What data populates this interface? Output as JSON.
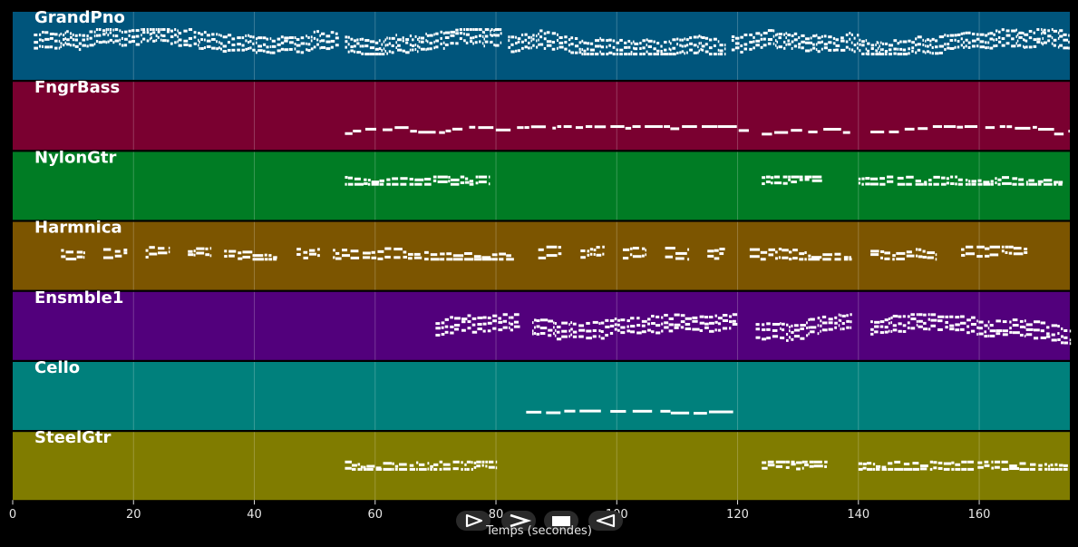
{
  "chart_data": {
    "type": "piano-roll",
    "xlabel": "Temps (secondes)",
    "xlim": [
      0,
      175
    ],
    "x_ticks": [
      0,
      20,
      40,
      60,
      80,
      100,
      120,
      140,
      160
    ],
    "grid": true,
    "tracks": [
      {
        "name": "GrandPno",
        "color": "#00557c",
        "pitch_range": [
          0,
          24
        ],
        "segments": [
          [
            3.5,
            54
          ],
          [
            55,
            81
          ],
          [
            82,
            118
          ],
          [
            119,
            175
          ]
        ],
        "density": 5,
        "pitch_band": [
          9,
          19
        ]
      },
      {
        "name": "FngrBass",
        "color": "#7a0030",
        "pitch_range": [
          0,
          24
        ],
        "segments": [
          [
            55,
            122
          ],
          [
            124,
            139
          ],
          [
            142,
            175
          ]
        ],
        "density": 1.2,
        "pitch_band": [
          3,
          8
        ]
      },
      {
        "name": "NylonGtr",
        "color": "#007c24",
        "pitch_range": [
          0,
          24
        ],
        "segments": [
          [
            55,
            79
          ],
          [
            124,
            134
          ],
          [
            140,
            174
          ]
        ],
        "density": 2.5,
        "pitch_band": [
          13,
          16
        ]
      },
      {
        "name": "Harmnica",
        "color": "#7c5500",
        "pitch_range": [
          0,
          24
        ],
        "segments": [
          [
            8,
            12
          ],
          [
            15,
            19
          ],
          [
            22,
            26
          ],
          [
            29,
            33
          ],
          [
            35,
            44
          ],
          [
            47,
            51
          ],
          [
            53,
            83
          ],
          [
            87,
            91
          ],
          [
            94,
            98
          ],
          [
            101,
            105
          ],
          [
            108,
            112
          ],
          [
            115,
            118
          ],
          [
            122,
            139
          ],
          [
            142,
            153
          ],
          [
            157,
            168
          ]
        ],
        "density": 2.2,
        "pitch_band": [
          11,
          16
        ]
      },
      {
        "name": "Ensmble1",
        "color": "#52007c",
        "pitch_range": [
          0,
          24
        ],
        "segments": [
          [
            70,
            84
          ],
          [
            86,
            120
          ],
          [
            123,
            139
          ],
          [
            142,
            175
          ]
        ],
        "density": 3.5,
        "pitch_band": [
          5,
          17
        ]
      },
      {
        "name": "Cello",
        "color": "#00807c",
        "pitch_range": [
          0,
          24
        ],
        "segments": [
          [
            85,
            120
          ]
        ],
        "density": 0.8,
        "pitch_band": [
          4,
          8
        ]
      },
      {
        "name": "SteelGtr",
        "color": "#807c00",
        "pitch_range": [
          0,
          24
        ],
        "segments": [
          [
            55,
            80
          ],
          [
            124,
            135
          ],
          [
            140,
            175
          ]
        ],
        "density": 2.5,
        "pitch_band": [
          11,
          14
        ]
      }
    ]
  },
  "controls": [
    {
      "name": "play-icon",
      "symbol": "play"
    },
    {
      "name": "forward-icon",
      "symbol": "forward"
    },
    {
      "name": "stop-icon",
      "symbol": "stop"
    },
    {
      "name": "rewind-icon",
      "symbol": "rewind"
    }
  ]
}
